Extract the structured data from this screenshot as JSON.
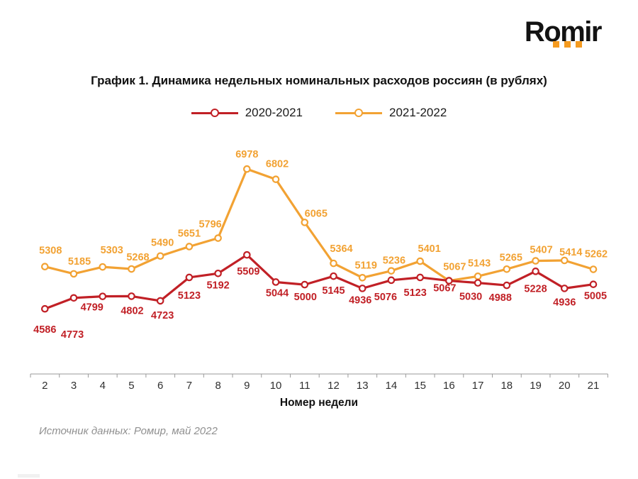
{
  "logo": {
    "text": "Romir",
    "dots_color": "#F59B20"
  },
  "title": "График 1. Динамика недельных номинальных расходов россиян (в рублях)",
  "legend": [
    {
      "label": "2020-2021",
      "color": "#C12026"
    },
    {
      "label": "2021-2022",
      "color": "#F2A233"
    }
  ],
  "source": "Источник данных: Ромир, май 2022",
  "chart_data": {
    "type": "line",
    "title": "График 1. Динамика недельных номинальных расходов россиян (в рублях)",
    "xlabel": "Номер недели",
    "ylabel": "",
    "x": [
      2,
      3,
      4,
      5,
      6,
      7,
      8,
      9,
      10,
      11,
      12,
      13,
      14,
      15,
      16,
      17,
      18,
      19,
      20,
      21
    ],
    "series": [
      {
        "name": "2020-2021",
        "color": "#C12026",
        "values": [
          4586,
          4773,
          4799,
          4802,
          4723,
          5123,
          5192,
          5509,
          5044,
          5000,
          5145,
          4936,
          5076,
          5123,
          5067,
          5030,
          4988,
          5228,
          4936,
          5005
        ]
      },
      {
        "name": "2021-2022",
        "color": "#F2A233",
        "values": [
          5308,
          5185,
          5303,
          5268,
          5490,
          5651,
          5796,
          6978,
          6802,
          6065,
          5364,
          5119,
          5236,
          5401,
          5067,
          5143,
          5265,
          5407,
          5414,
          5262
        ]
      }
    ],
    "ylim": [
      4400,
      7100
    ],
    "grid": false,
    "y_axis_visible": false,
    "legend_position": "top",
    "data_labels": true,
    "marker": "circle-open"
  }
}
